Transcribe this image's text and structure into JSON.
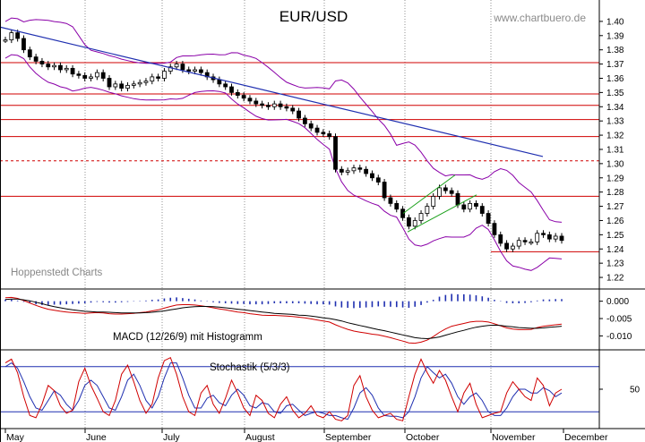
{
  "chart_data": {
    "type": "line",
    "title": "EUR/USD",
    "source_label": "www.chartbuero.de",
    "watermark": "Hoppenstedt Charts",
    "x_months": [
      "May",
      "June",
      "July",
      "August",
      "September",
      "October",
      "November",
      "December"
    ],
    "price": {
      "ylim": [
        1.215,
        1.41
      ],
      "y_ticks": [
        "1.40",
        "1.39",
        "1.38",
        "1.37",
        "1.36",
        "1.35",
        "1.34",
        "1.33",
        "1.32",
        "1.31",
        "1.30",
        "1.29",
        "1.28",
        "1.27",
        "1.26",
        "1.25",
        "1.24",
        "1.23",
        "1.22"
      ],
      "closes": [
        1.387,
        1.392,
        1.388,
        1.38,
        1.375,
        1.372,
        1.37,
        1.368,
        1.369,
        1.366,
        1.367,
        1.363,
        1.362,
        1.36,
        1.361,
        1.364,
        1.36,
        1.354,
        1.356,
        1.353,
        1.355,
        1.356,
        1.357,
        1.358,
        1.361,
        1.36,
        1.365,
        1.368,
        1.37,
        1.366,
        1.365,
        1.366,
        1.364,
        1.361,
        1.359,
        1.356,
        1.354,
        1.35,
        1.348,
        1.346,
        1.344,
        1.342,
        1.341,
        1.34,
        1.342,
        1.34,
        1.339,
        1.337,
        1.332,
        1.328,
        1.325,
        1.322,
        1.321,
        1.319,
        1.296,
        1.294,
        1.295,
        1.297,
        1.296,
        1.293,
        1.29,
        1.287,
        1.276,
        1.272,
        1.268,
        1.262,
        1.256,
        1.26,
        1.265,
        1.27,
        1.277,
        1.283,
        1.281,
        1.279,
        1.271,
        1.268,
        1.272,
        1.27,
        1.265,
        1.258,
        1.25,
        1.244,
        1.24,
        1.242,
        1.246,
        1.245,
        1.245,
        1.251,
        1.25,
        1.247,
        1.249,
        1.246
      ],
      "resistance_lines": [
        1.371,
        1.349,
        1.341,
        1.331,
        1.319,
        1.277
      ],
      "dashed_line": 1.302,
      "support_line": 1.238,
      "trendline": {
        "start": 1.396,
        "end": 1.305
      },
      "channel": {
        "lower_start": 1.252,
        "lower_end": 1.278,
        "upper_start": 1.265,
        "upper_end": 1.292
      }
    },
    "macd": {
      "label": "MACD (12/26/9) mit Histogramm",
      "ylim": [
        -0.0135,
        0.003
      ],
      "y_ticks": [
        "0.000",
        "-0.005",
        "-0.010"
      ],
      "macd_line": [
        0.001,
        0.0011,
        0.0008,
        0.0002,
        -0.0005,
        -0.0012,
        -0.0018,
        -0.0023,
        -0.0026,
        -0.0029,
        -0.0031,
        -0.0033,
        -0.0034,
        -0.0035,
        -0.0034,
        -0.0033,
        -0.0034,
        -0.0036,
        -0.0037,
        -0.0037,
        -0.0036,
        -0.0035,
        -0.0033,
        -0.0031,
        -0.0028,
        -0.0025,
        -0.002,
        -0.0015,
        -0.0011,
        -0.001,
        -0.001,
        -0.0011,
        -0.0013,
        -0.0016,
        -0.0019,
        -0.0022,
        -0.0025,
        -0.0028,
        -0.0031,
        -0.0033,
        -0.0036,
        -0.0038,
        -0.004,
        -0.0041,
        -0.0041,
        -0.0042,
        -0.0043,
        -0.0044,
        -0.0046,
        -0.0048,
        -0.0051,
        -0.0054,
        -0.0057,
        -0.006,
        -0.0068,
        -0.0075,
        -0.0081,
        -0.0086,
        -0.0089,
        -0.0092,
        -0.0095,
        -0.0097,
        -0.0101,
        -0.0105,
        -0.011,
        -0.0115,
        -0.012,
        -0.0121,
        -0.0118,
        -0.0112,
        -0.0102,
        -0.009,
        -0.008,
        -0.0072,
        -0.0068,
        -0.0064,
        -0.006,
        -0.0058,
        -0.0058,
        -0.006,
        -0.0065,
        -0.0071,
        -0.0077,
        -0.008,
        -0.0082,
        -0.0082,
        -0.0081,
        -0.0076,
        -0.0072,
        -0.007,
        -0.0068,
        -0.0066
      ],
      "signal_line": [
        0.0005,
        0.0006,
        0.0006,
        0.0004,
        0.0001,
        -0.0003,
        -0.0007,
        -0.0012,
        -0.0016,
        -0.0019,
        -0.0022,
        -0.0025,
        -0.0027,
        -0.0029,
        -0.003,
        -0.0031,
        -0.0031,
        -0.0032,
        -0.0033,
        -0.0034,
        -0.0034,
        -0.0034,
        -0.0034,
        -0.0033,
        -0.0032,
        -0.003,
        -0.0028,
        -0.0025,
        -0.0022,
        -0.0019,
        -0.0017,
        -0.0016,
        -0.0015,
        -0.0015,
        -0.0016,
        -0.0017,
        -0.0019,
        -0.0021,
        -0.0023,
        -0.0025,
        -0.0027,
        -0.0029,
        -0.0031,
        -0.0033,
        -0.0035,
        -0.0036,
        -0.0037,
        -0.0038,
        -0.004,
        -0.0041,
        -0.0043,
        -0.0045,
        -0.0048,
        -0.005,
        -0.0053,
        -0.0057,
        -0.0062,
        -0.0066,
        -0.007,
        -0.0074,
        -0.0078,
        -0.0082,
        -0.0085,
        -0.0089,
        -0.0093,
        -0.0097,
        -0.0101,
        -0.0105,
        -0.0107,
        -0.0108,
        -0.0106,
        -0.0103,
        -0.0098,
        -0.0093,
        -0.0088,
        -0.0084,
        -0.0079,
        -0.0075,
        -0.0072,
        -0.007,
        -0.0069,
        -0.007,
        -0.0072,
        -0.0074,
        -0.0076,
        -0.0077,
        -0.0078,
        -0.0078,
        -0.0077,
        -0.0075,
        -0.0074,
        -0.0072
      ]
    },
    "stochastic": {
      "label": "Stochastik (5/3/3)",
      "ylim": [
        0,
        100
      ],
      "y_ticks": [
        "50"
      ],
      "levels": [
        80,
        20
      ],
      "k_line": [
        85,
        90,
        72,
        40,
        15,
        12,
        30,
        55,
        48,
        28,
        18,
        22,
        60,
        78,
        55,
        38,
        20,
        15,
        35,
        70,
        82,
        60,
        35,
        18,
        30,
        65,
        88,
        92,
        70,
        40,
        20,
        15,
        45,
        55,
        30,
        18,
        38,
        62,
        45,
        25,
        15,
        42,
        35,
        18,
        12,
        30,
        40,
        22,
        12,
        18,
        28,
        15,
        12,
        20,
        10,
        8,
        15,
        55,
        68,
        40,
        22,
        12,
        15,
        18,
        10,
        8,
        40,
        70,
        90,
        72,
        58,
        75,
        62,
        40,
        20,
        45,
        58,
        30,
        12,
        15,
        18,
        20,
        45,
        60,
        50,
        40,
        35,
        65,
        55,
        28,
        45,
        50
      ],
      "d_line": [
        80,
        85,
        78,
        60,
        40,
        25,
        22,
        35,
        48,
        42,
        30,
        22,
        35,
        55,
        62,
        55,
        40,
        25,
        22,
        40,
        62,
        70,
        55,
        35,
        25,
        40,
        65,
        85,
        85,
        65,
        42,
        25,
        25,
        38,
        42,
        32,
        28,
        42,
        50,
        42,
        28,
        25,
        32,
        30,
        20,
        18,
        28,
        30,
        22,
        15,
        18,
        20,
        18,
        15,
        15,
        12,
        10,
        25,
        45,
        52,
        42,
        25,
        15,
        14,
        14,
        12,
        20,
        40,
        65,
        80,
        72,
        65,
        70,
        58,
        40,
        30,
        40,
        45,
        35,
        20,
        15,
        15,
        25,
        40,
        50,
        50,
        45,
        45,
        52,
        48,
        40,
        45
      ]
    }
  }
}
